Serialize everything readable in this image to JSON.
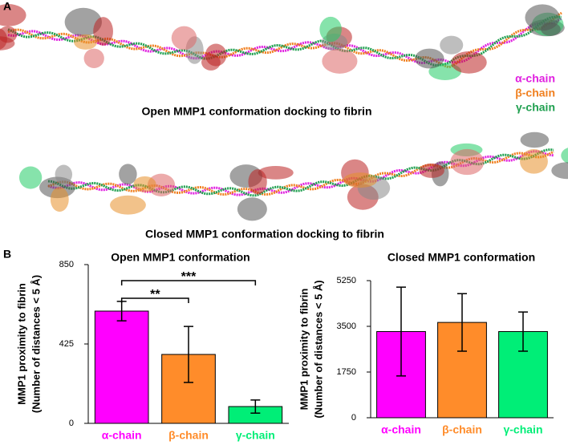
{
  "panel_a": {
    "label": "A",
    "captions": [
      "Open MMP1 conformation docking to fibrin",
      "Closed MMP1 conformation docking to fibrin"
    ],
    "legend": [
      {
        "name": "α-chain",
        "color": "#e020e0"
      },
      {
        "name": "β-chain",
        "color": "#f08020"
      },
      {
        "name": "γ-chain",
        "color": "#20a050"
      }
    ]
  },
  "panel_b": {
    "label": "B"
  },
  "chart_data": [
    {
      "type": "bar",
      "title": "Open MMP1 conformation",
      "y_label": [
        "MMP1 proximity to fibrin",
        "(Number of distances < 5 Å)"
      ],
      "categories": [
        "α-chain",
        "β-chain",
        "γ-chain"
      ],
      "values": [
        601,
        369,
        90
      ],
      "errors": [
        52,
        150,
        35
      ],
      "colors": [
        "#ff00ff",
        "#ff8c2a",
        "#00ee77"
      ],
      "ylim": [
        0,
        850
      ],
      "yticks": [
        0,
        425,
        850
      ],
      "annotations": [
        "**",
        "***"
      ]
    },
    {
      "type": "bar",
      "title": "Closed MMP1 conformation",
      "y_label": [
        "MMP1 proximity to fibrin",
        "(Number of distances < 5 Å)"
      ],
      "categories": [
        "α-chain",
        "β-chain",
        "γ-chain"
      ],
      "values": [
        3300,
        3650,
        3300
      ],
      "errors": [
        1700,
        1100,
        750
      ],
      "colors": [
        "#ff00ff",
        "#ff8c2a",
        "#00ee77"
      ],
      "ylim": [
        0,
        5250
      ],
      "yticks": [
        0,
        1750,
        3500,
        5250
      ]
    }
  ]
}
